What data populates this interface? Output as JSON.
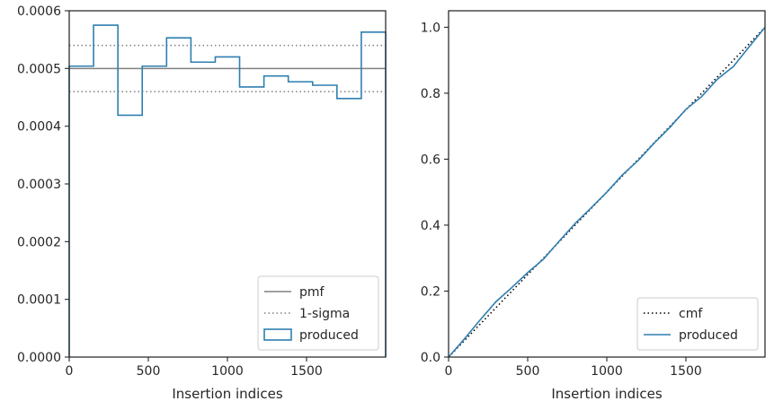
{
  "chart_data": [
    {
      "type": "step-histogram",
      "xlabel": "Insertion indices",
      "ylabel": "",
      "xlim": [
        0,
        2000
      ],
      "ylim": [
        0,
        0.0006
      ],
      "x_ticks": [
        0,
        500,
        1000,
        1500
      ],
      "x_tick_labels": [
        "0",
        "500",
        "1000",
        "1500"
      ],
      "y_ticks": [
        0,
        0.0001,
        0.0002,
        0.0003,
        0.0004,
        0.0005,
        0.0006
      ],
      "y_tick_labels": [
        "0.0000",
        "0.0001",
        "0.0002",
        "0.0003",
        "0.0004",
        "0.0005",
        "0.0006"
      ],
      "legend_position": "lower-right",
      "reference_lines": [
        {
          "name": "pmf",
          "y": 0.0005,
          "style": "solid",
          "color": "#808080"
        },
        {
          "name": "1-sigma",
          "y": 0.00054,
          "style": "dotted",
          "color": "#808080"
        },
        {
          "name": "1-sigma",
          "y": 0.00046,
          "style": "dotted",
          "color": "#808080"
        }
      ],
      "series": [
        {
          "name": "produced",
          "color": "#2e7fb0",
          "bin_edges": [
            0,
            153.8,
            307.7,
            461.5,
            615.4,
            769.2,
            923.1,
            1076.9,
            1230.8,
            1384.6,
            1538.5,
            1692.3,
            1846.2,
            2000
          ],
          "values": [
            0.000504,
            0.000575,
            0.000419,
            0.000504,
            0.000553,
            0.000511,
            0.00052,
            0.000468,
            0.000487,
            0.000477,
            0.000471,
            0.000448,
            0.000563
          ]
        }
      ],
      "legend": [
        "pmf",
        "1-sigma",
        "produced"
      ]
    },
    {
      "type": "line",
      "xlabel": "Insertion indices",
      "ylabel": "",
      "xlim": [
        0,
        2000
      ],
      "ylim": [
        0,
        1.05
      ],
      "x_ticks": [
        0,
        500,
        1000,
        1500
      ],
      "x_tick_labels": [
        "0",
        "500",
        "1000",
        "1500"
      ],
      "y_ticks": [
        0,
        0.2,
        0.4,
        0.6,
        0.8,
        1.0
      ],
      "y_tick_labels": [
        "0.0",
        "0.2",
        "0.4",
        "0.6",
        "0.8",
        "1.0"
      ],
      "legend_position": "lower-right",
      "series": [
        {
          "name": "cmf",
          "style": "dotted",
          "color": "#000000",
          "x": [
            0,
            2000
          ],
          "y": [
            0,
            1.0
          ]
        },
        {
          "name": "produced",
          "style": "solid",
          "color": "#2e7fb0",
          "x": [
            0,
            100,
            200,
            300,
            400,
            500,
            600,
            700,
            800,
            900,
            1000,
            1100,
            1200,
            1300,
            1400,
            1500,
            1600,
            1700,
            1800,
            1900,
            2000
          ],
          "y": [
            0,
            0.055,
            0.113,
            0.168,
            0.211,
            0.256,
            0.297,
            0.352,
            0.405,
            0.452,
            0.5,
            0.553,
            0.597,
            0.649,
            0.697,
            0.751,
            0.79,
            0.843,
            0.881,
            0.941,
            1.0
          ]
        }
      ],
      "legend": [
        "cmf",
        "produced"
      ]
    }
  ]
}
